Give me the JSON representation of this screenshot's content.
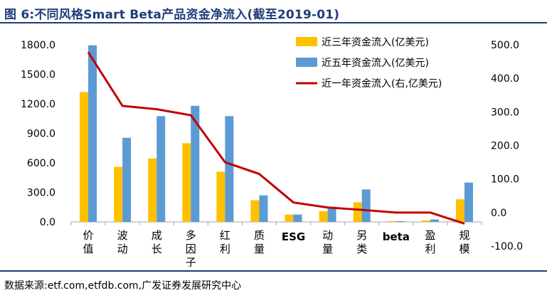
{
  "header": {
    "title": "图 6:不同风格Smart Beta产品资金净流入(截至2019-01)"
  },
  "footer": {
    "source": "数据来源:etf.com,etfdb.com,广发证券发展研究中心"
  },
  "colors": {
    "bar3y": "#FFC000",
    "bar5y": "#5B9BD5",
    "line1y": "#C00000",
    "title": "#1f3d7a"
  },
  "chart_data": {
    "type": "bar",
    "categories": [
      "价值",
      "波动",
      "成长",
      "多因子",
      "红利",
      "质量",
      "ESG",
      "动量",
      "另类",
      "beta",
      "盈利",
      "规模"
    ],
    "series": [
      {
        "name": "近三年资金流入(亿美元)",
        "type": "bar",
        "axis": "left",
        "values": [
          1320,
          560,
          645,
          800,
          510,
          220,
          75,
          110,
          200,
          8,
          15,
          230
        ]
      },
      {
        "name": "近五年资金流入(亿美元)",
        "type": "bar",
        "axis": "left",
        "values": [
          1795,
          855,
          1075,
          1180,
          1075,
          270,
          75,
          155,
          330,
          8,
          25,
          400
        ]
      },
      {
        "name": "近一年资金流入(右,亿美元)",
        "type": "line",
        "axis": "right",
        "values": [
          478,
          318,
          308,
          290,
          150,
          115,
          30,
          15,
          8,
          0,
          0,
          -33
        ]
      }
    ],
    "ylim_left": [
      0,
      1800
    ],
    "yticks_left": [
      "0.0",
      "300.0",
      "600.0",
      "900.0",
      "1200.0",
      "1500.0",
      "1800.0"
    ],
    "ylim_right": [
      -100,
      500
    ],
    "yticks_right": [
      "-100.0",
      "0.0",
      "100.0",
      "200.0",
      "300.0",
      "400.0",
      "500.0"
    ],
    "legend": "top-right",
    "grid": false
  }
}
